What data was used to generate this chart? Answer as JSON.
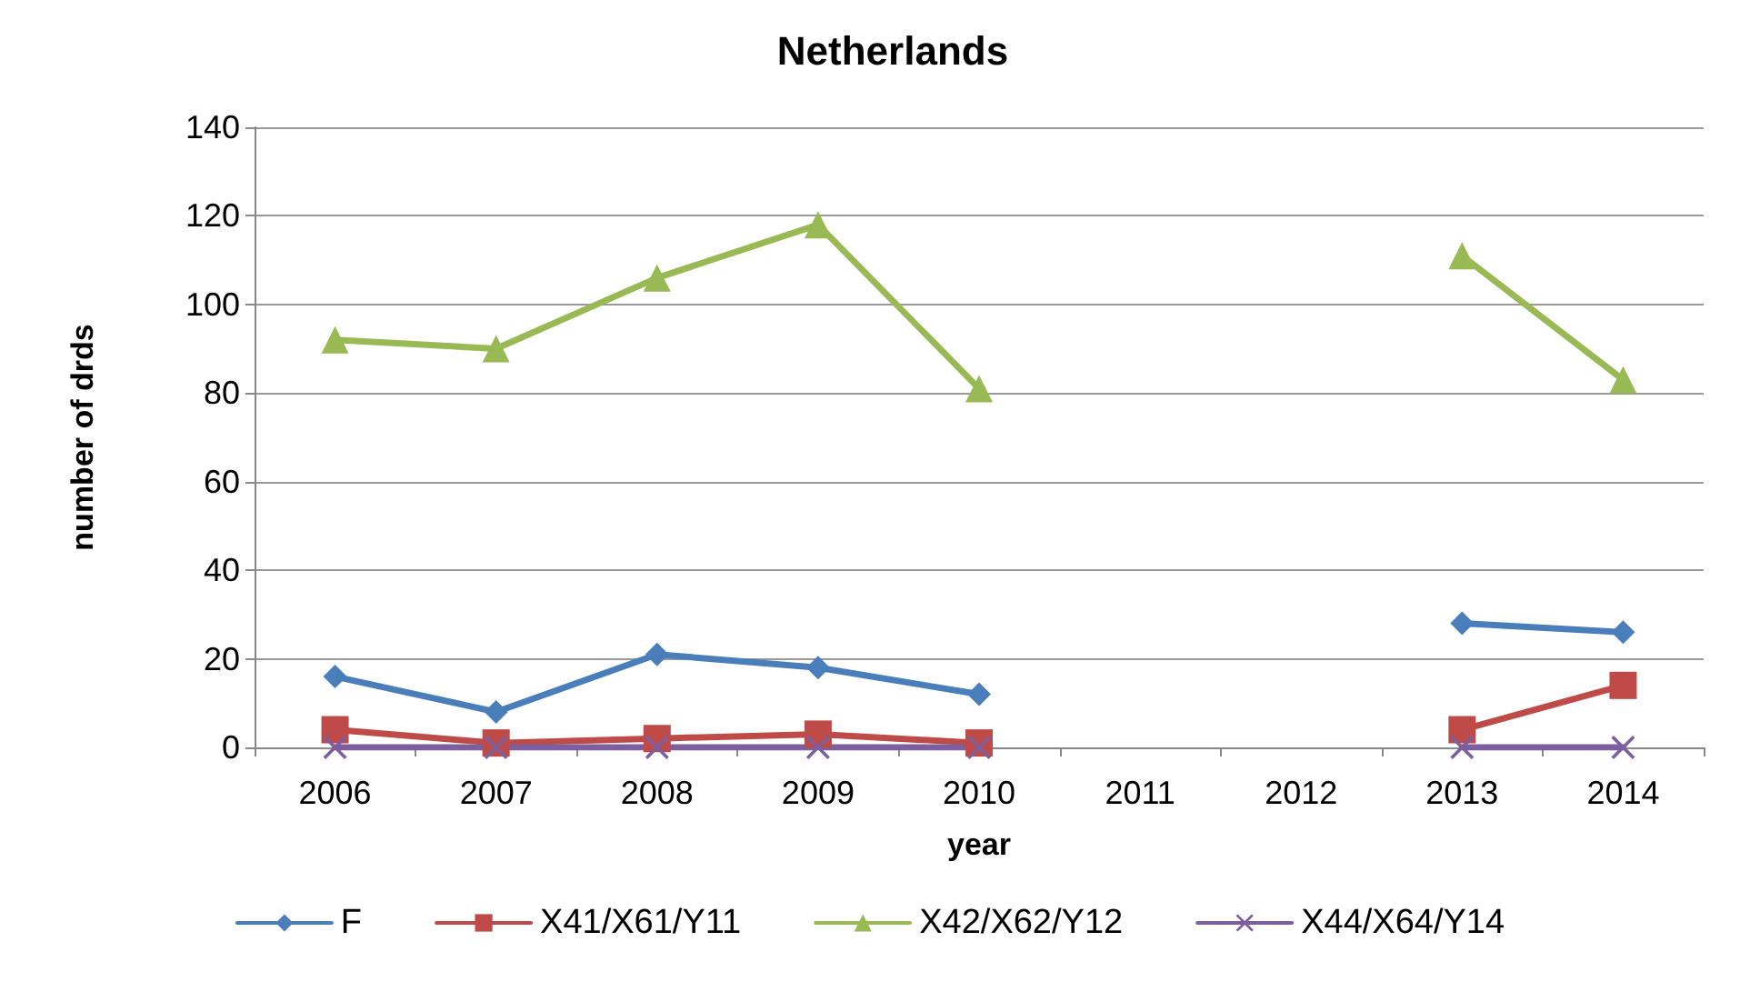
{
  "chart_data": {
    "type": "line",
    "title": "Netherlands",
    "xlabel": "year",
    "ylabel": "number of drds",
    "categories": [
      "2006",
      "2007",
      "2008",
      "2009",
      "2010",
      "2011",
      "2012",
      "2013",
      "2014"
    ],
    "series": [
      {
        "name": "F",
        "color": "#4a7ebb",
        "marker": "diamond",
        "values": [
          16,
          8,
          21,
          18,
          12,
          null,
          null,
          28,
          26
        ]
      },
      {
        "name": "X41/X61/Y11",
        "color": "#be4b48",
        "marker": "square",
        "values": [
          4,
          1,
          2,
          3,
          1,
          null,
          null,
          4,
          14
        ]
      },
      {
        "name": "X42/X62/Y12",
        "color": "#98b954",
        "marker": "triangle",
        "values": [
          92,
          90,
          106,
          118,
          81,
          null,
          null,
          111,
          83
        ]
      },
      {
        "name": "X44/X64/Y14",
        "color": "#7d5fa0",
        "marker": "cross",
        "values": [
          0,
          0,
          0,
          0,
          0,
          null,
          null,
          0,
          0
        ]
      }
    ],
    "ylim": [
      0,
      140
    ],
    "yticks": [
      0,
      20,
      40,
      60,
      80,
      100,
      120,
      140
    ],
    "grid": "y",
    "legend": "bottom"
  }
}
